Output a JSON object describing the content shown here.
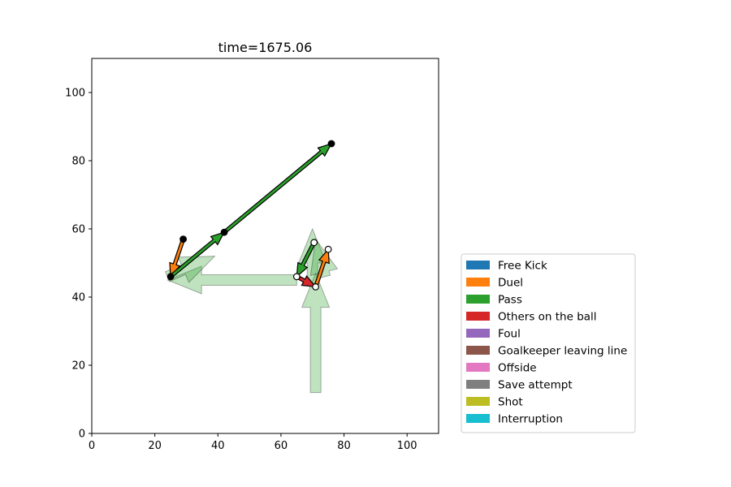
{
  "chart_data": {
    "type": "scatter",
    "title": "time=1675.06",
    "xlim": [
      0,
      110
    ],
    "ylim": [
      0,
      110
    ],
    "xticks": [
      0,
      20,
      40,
      60,
      80,
      100
    ],
    "yticks": [
      0,
      20,
      40,
      60,
      80,
      100
    ],
    "grid": false,
    "legend_position": "lower-right outside",
    "legend": [
      {
        "label": "Free Kick",
        "color": "#1f77b4"
      },
      {
        "label": "Duel",
        "color": "#ff7f0e"
      },
      {
        "label": "Pass",
        "color": "#2ca02c"
      },
      {
        "label": "Others on the ball",
        "color": "#d62728"
      },
      {
        "label": "Foul",
        "color": "#9467bd"
      },
      {
        "label": "Goalkeeper leaving line",
        "color": "#8c564b"
      },
      {
        "label": "Offside",
        "color": "#e377c2"
      },
      {
        "label": "Save attempt",
        "color": "#7f7f7f"
      },
      {
        "label": "Shot",
        "color": "#bcbd22"
      },
      {
        "label": "Interruption",
        "color": "#17becf"
      }
    ],
    "faded_arrows": [
      {
        "event": "Pass",
        "from": [
          71,
          12
        ],
        "to": [
          71,
          47
        ]
      },
      {
        "event": "Pass",
        "from": [
          70,
          44
        ],
        "to": [
          70,
          60
        ]
      },
      {
        "event": "Pass",
        "from": [
          74,
          46
        ],
        "to": [
          71,
          57
        ]
      },
      {
        "event": "Pass",
        "from": [
          65,
          45
        ],
        "to": [
          24,
          45
        ]
      },
      {
        "event": "Pass",
        "from": [
          24,
          46
        ],
        "to": [
          39,
          52
        ]
      }
    ],
    "arrows": [
      {
        "event": "Duel",
        "team": "home",
        "from": [
          29,
          57
        ],
        "to": [
          25,
          46
        ]
      },
      {
        "event": "Pass",
        "team": "home",
        "from": [
          25,
          46
        ],
        "to": [
          42,
          59
        ]
      },
      {
        "event": "Pass",
        "team": "home",
        "from": [
          42,
          59
        ],
        "to": [
          76,
          85
        ]
      },
      {
        "event": "Pass",
        "team": "away",
        "from": [
          70.5,
          56
        ],
        "to": [
          65,
          46
        ]
      },
      {
        "event": "Others on the ball",
        "team": "away",
        "from": [
          65,
          46
        ],
        "to": [
          71,
          43
        ]
      },
      {
        "event": "Duel",
        "team": "away",
        "from": [
          71,
          43
        ],
        "to": [
          75,
          54
        ]
      }
    ]
  }
}
